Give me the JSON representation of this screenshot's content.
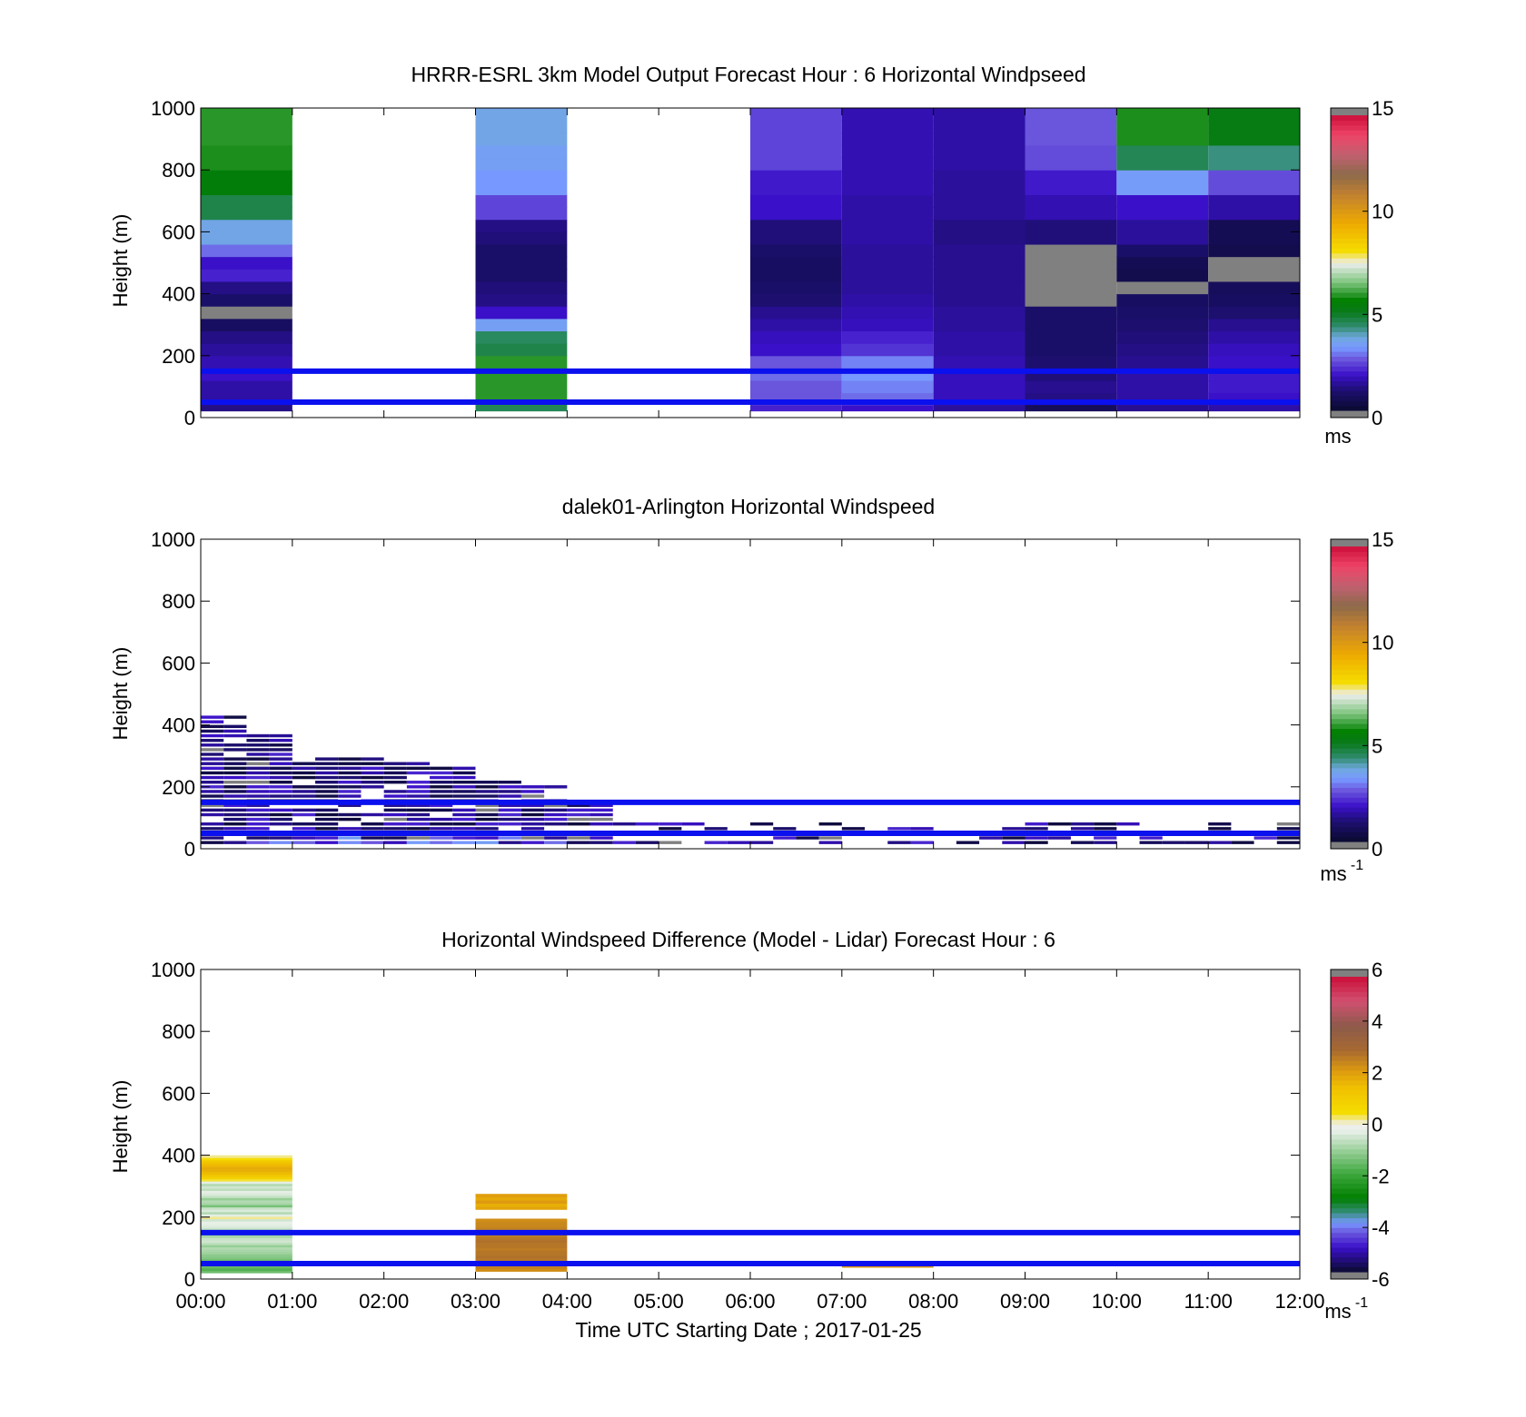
{
  "figure": {
    "xlabel": "Time UTC  Starting Date ; 2017-01-25",
    "x_ticks": [
      "00:00",
      "01:00",
      "02:00",
      "03:00",
      "04:00",
      "05:00",
      "06:00",
      "07:00",
      "08:00",
      "09:00",
      "10:00",
      "11:00",
      "12:00"
    ]
  },
  "chart_data": [
    {
      "type": "heatmap",
      "title": "HRRR-ESRL 3km Model Output   Forecast Hour : 6 Horizontal Windpseed",
      "ylabel": "Height (m)",
      "ylim": [
        0,
        1000
      ],
      "y_ticks": [
        "0",
        "200",
        "400",
        "600",
        "800",
        "1000"
      ],
      "xlim_hours": [
        0,
        12
      ],
      "colorbar": {
        "range": [
          0,
          15
        ],
        "ticks": [
          "0",
          "5",
          "10",
          "15"
        ],
        "unit": "ms"
      },
      "reference_lines_m": [
        50,
        150
      ],
      "columns": [
        {
          "start_hour": 0,
          "speeds": [
            1.2,
            1.5,
            1.5,
            1.8,
            1.6,
            1.4,
            1.2,
            0.8,
            -1,
            0.9,
            1.2,
            2.0,
            1.8,
            2.8,
            3.6,
            3.6,
            4.6,
            4.6,
            5.4,
            5.4,
            5.8,
            5.8,
            5.9,
            5.9,
            5.9
          ]
        },
        {
          "start_hour": 1,
          "speeds": []
        },
        {
          "start_hour": 2,
          "speeds": []
        },
        {
          "start_hour": 3,
          "speeds": [
            4.5,
            5.9,
            5.9,
            5.9,
            5.9,
            4.6,
            4.4,
            3.4,
            1.8,
            1.2,
            1.1,
            0.9,
            0.9,
            0.9,
            1.1,
            1.2,
            2.4,
            2.4,
            3.2,
            3.2,
            3.4,
            3.4,
            3.6,
            3.6,
            3.6
          ]
        },
        {
          "start_hour": 4,
          "speeds": []
        },
        {
          "start_hour": 5,
          "speeds": []
        },
        {
          "start_hour": 6,
          "speeds": [
            2.0,
            2.6,
            2.6,
            2.8,
            2.6,
            1.8,
            1.7,
            1.5,
            1.3,
            1.0,
            0.9,
            0.8,
            0.8,
            0.9,
            1.1,
            1.1,
            1.8,
            1.8,
            1.9,
            1.9,
            2.4,
            2.4,
            2.4,
            2.4,
            2.4
          ]
        },
        {
          "start_hour": 7,
          "speeds": [
            1.8,
            2.8,
            3.0,
            3.2,
            3.0,
            2.2,
            2.0,
            1.7,
            1.6,
            1.5,
            1.4,
            1.4,
            1.4,
            1.4,
            1.5,
            1.5,
            1.5,
            1.5,
            1.6,
            1.6,
            1.6,
            1.6,
            1.6,
            1.6,
            1.6
          ]
        },
        {
          "start_hour": 8,
          "speeds": [
            1.4,
            1.7,
            1.7,
            1.7,
            1.6,
            1.5,
            1.5,
            1.4,
            1.4,
            1.3,
            1.3,
            1.3,
            1.3,
            1.3,
            1.2,
            1.2,
            1.4,
            1.4,
            1.4,
            1.4,
            1.5,
            1.5,
            1.5,
            1.5,
            1.5
          ]
        },
        {
          "start_hour": 9,
          "speeds": [
            0.7,
            1.2,
            1.3,
            1.1,
            1.0,
            0.9,
            0.9,
            0.9,
            0.9,
            -1,
            -1,
            -1,
            -1,
            -1,
            1.1,
            1.1,
            1.6,
            1.6,
            1.9,
            1.9,
            2.5,
            2.5,
            2.6,
            2.6,
            2.6
          ]
        },
        {
          "start_hour": 10,
          "speeds": [
            1.3,
            1.5,
            1.5,
            1.5,
            1.3,
            1.2,
            1.1,
            1.0,
            0.9,
            0.8,
            -1,
            0.5,
            0.6,
            0.9,
            1.4,
            1.4,
            1.8,
            1.8,
            3.3,
            3.3,
            4.5,
            4.5,
            5.8,
            5.8,
            5.8
          ]
        },
        {
          "start_hour": 11,
          "speeds": [
            1.5,
            1.8,
            1.9,
            1.9,
            1.8,
            1.7,
            1.5,
            1.3,
            1.0,
            0.8,
            0.7,
            -1,
            -1,
            0.5,
            0.6,
            0.6,
            1.5,
            1.5,
            2.5,
            2.5,
            4.2,
            4.2,
            5.2,
            5.2,
            5.2
          ]
        }
      ]
    },
    {
      "type": "heatmap",
      "title": "dalek01-Arlington  Horizontal Windspeed",
      "ylabel": "Height (m)",
      "ylim": [
        0,
        1000
      ],
      "y_ticks": [
        "0",
        "200",
        "400",
        "600",
        "800",
        "1000"
      ],
      "xlim_hours": [
        0,
        12
      ],
      "colorbar": {
        "range": [
          0,
          15
        ],
        "ticks": [
          "0",
          "5",
          "10",
          "15"
        ],
        "unit": "ms",
        "unit_exp": "-1"
      },
      "reference_lines_m": [
        50,
        150
      ],
      "lidar_max_height_m": [
        430,
        375,
        300,
        295,
        280,
        260,
        220,
        200,
        140,
        80,
        80,
        85,
        85,
        80,
        80,
        80,
        80,
        90,
        90,
        90,
        85,
        85,
        90,
        85
      ]
    },
    {
      "type": "heatmap",
      "title": "Horizontal Windspeed Difference (Model - Lidar) Forecast Hour : 6",
      "ylabel": "Height (m)",
      "ylim": [
        0,
        1000
      ],
      "y_ticks": [
        "0",
        "200",
        "400",
        "600",
        "800",
        "1000"
      ],
      "xlim_hours": [
        0,
        12
      ],
      "colorbar": {
        "range": [
          -6,
          6
        ],
        "ticks": [
          "-6",
          "-4",
          "-2",
          "0",
          "2",
          "4",
          "6"
        ],
        "unit": "ms",
        "unit_exp": "-1"
      },
      "reference_lines_m": [
        50,
        150
      ],
      "blocks": [
        {
          "start_hour": 0,
          "end_hour": 1,
          "bottom_m": 20,
          "top_m": 400,
          "speeds": [
            -1.5,
            -1.8,
            -1.6,
            -2.2,
            -1.7,
            -1.5,
            -1.3,
            -1.2,
            -1.0,
            -0.9,
            -0.8,
            -1.1,
            -0.7,
            -0.5,
            -0.6,
            -0.9,
            -1.2,
            -1.0,
            -0.7,
            -0.4,
            -0.3,
            -0.2,
            -0.5,
            0.2,
            -0.3,
            -0.8,
            -0.4,
            -0.6,
            -1.4,
            -0.9,
            -0.8,
            -1.1,
            -0.6,
            -0.4,
            -0.3,
            -0.7,
            -0.5,
            -0.8,
            -0.3,
            0.4,
            0.9,
            1.3,
            1.6,
            1.8,
            1.9,
            1.7,
            1.5,
            1.2,
            0.5,
            0.2
          ]
        },
        {
          "start_hour": 3,
          "end_hour": 4,
          "bottom_m": 25,
          "top_m": 195,
          "speeds": [
            2.4,
            2.6,
            2.7,
            2.8,
            2.8,
            2.9,
            2.8,
            2.8,
            2.7,
            2.8,
            2.8,
            2.9,
            2.8,
            2.7,
            2.7,
            2.6,
            2.6,
            2.5,
            2.5,
            2.4
          ]
        },
        {
          "start_hour": 3,
          "end_hour": 4,
          "bottom_m": 225,
          "top_m": 275,
          "speeds": [
            2.0,
            1.8,
            2.2,
            1.9,
            2.1
          ]
        },
        {
          "start_hour": 7,
          "end_hour": 8,
          "bottom_m": 38,
          "top_m": 46,
          "speeds": [
            2.3
          ]
        }
      ]
    }
  ]
}
